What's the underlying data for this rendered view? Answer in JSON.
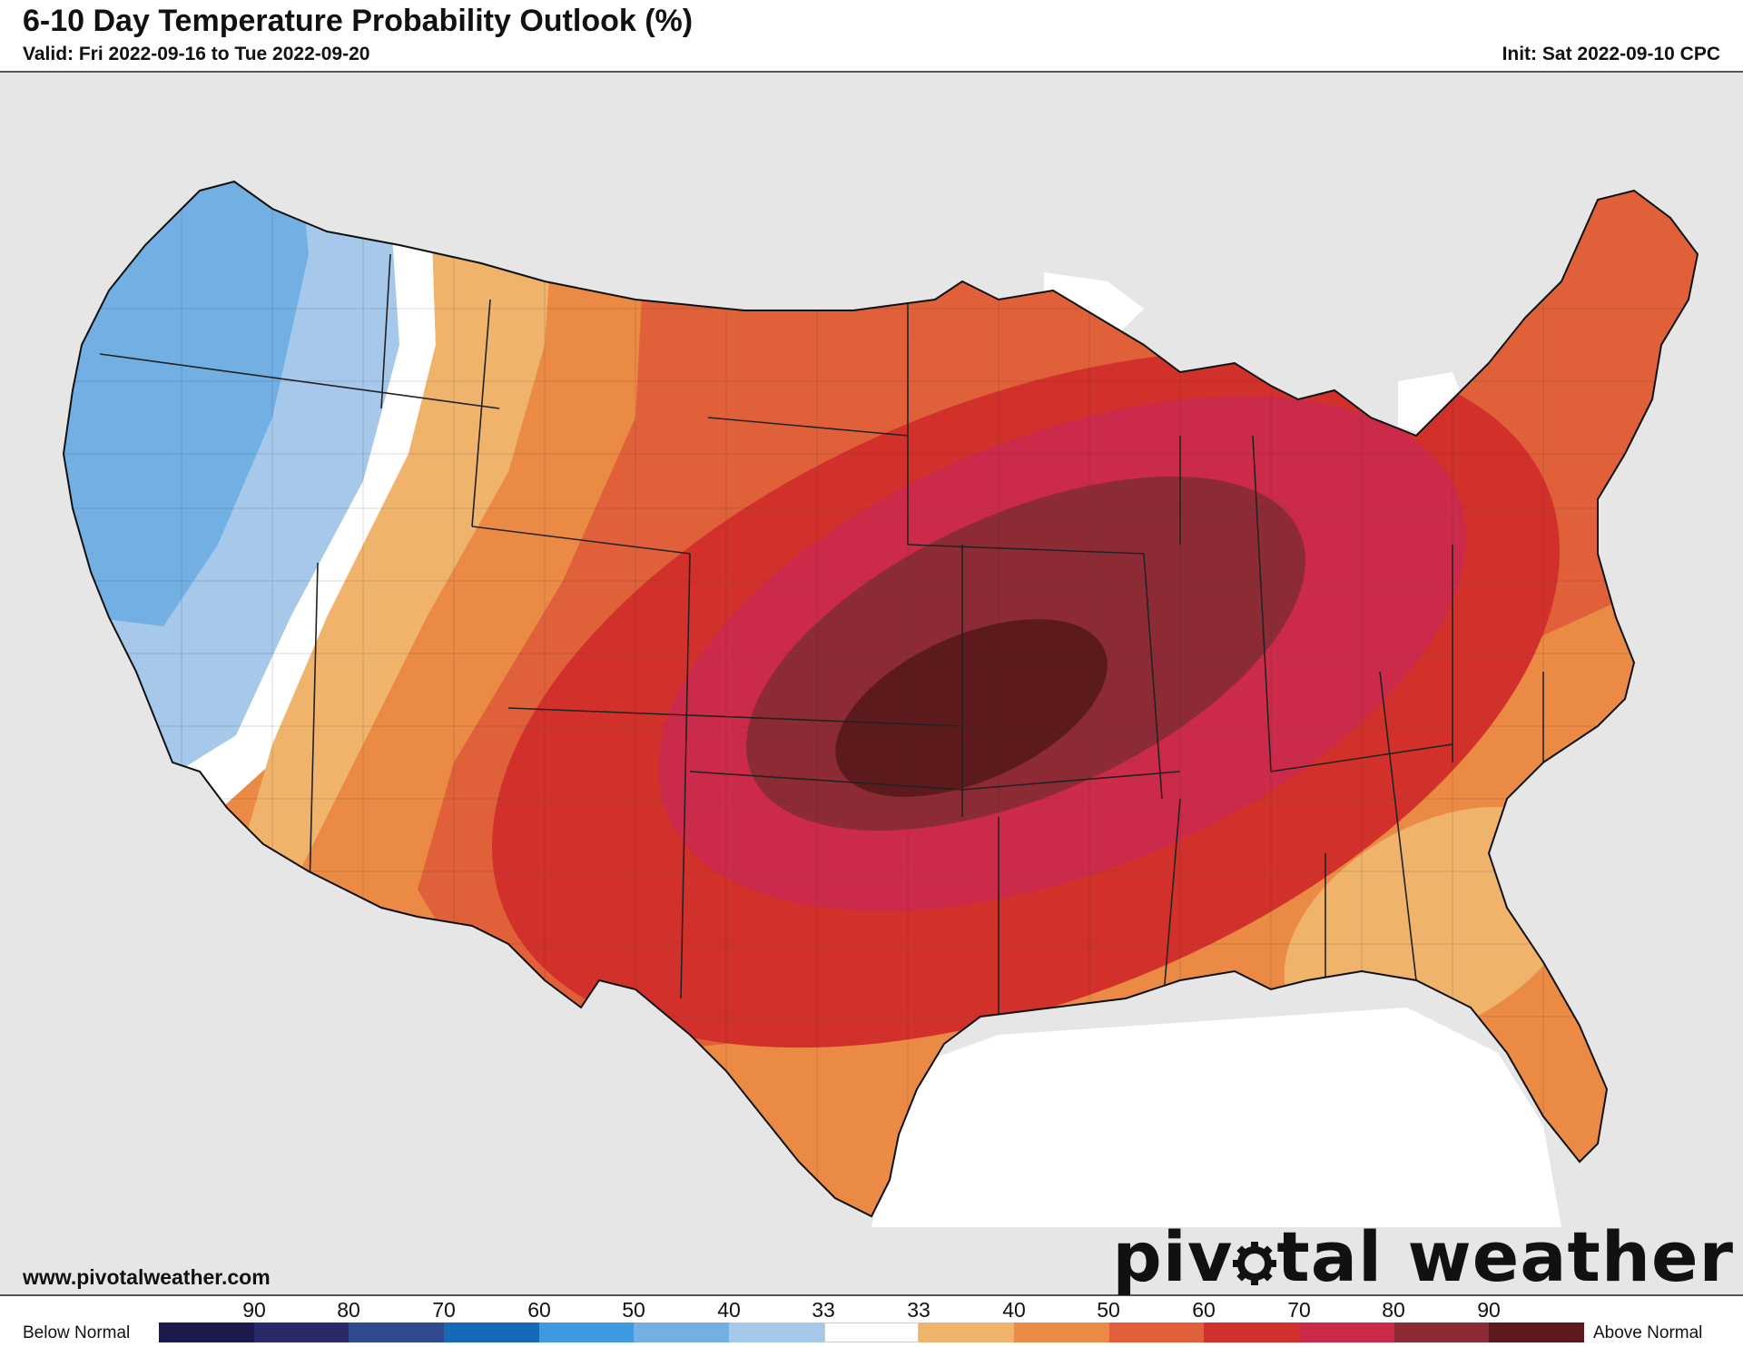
{
  "header": {
    "title": "6-10 Day Temperature Probability Outlook (%)",
    "valid": "Valid: Fri 2022-09-16 to Tue 2022-09-20",
    "init": "Init: Sat 2022-09-10 CPC"
  },
  "footer": {
    "website": "www.pivotalweather.com",
    "logo_left": "piv",
    "logo_right": "tal weather"
  },
  "legend": {
    "below_label": "Below Normal",
    "above_label": "Above Normal",
    "ticks": [
      "90",
      "80",
      "70",
      "60",
      "50",
      "40",
      "33",
      "33",
      "40",
      "50",
      "60",
      "70",
      "80",
      "90"
    ],
    "colors": [
      "#1b1a4a",
      "#282a6a",
      "#2f4a8e",
      "#1668b8",
      "#3d9ae0",
      "#72b0e4",
      "#a6c8ea",
      "#ffffff",
      "#efb36b",
      "#eb8a45",
      "#e0603a",
      "#d2302b",
      "#cc2a4a",
      "#8c2a36",
      "#5c1a1c"
    ]
  },
  "map_colors": {
    "land_outside": "#e6e6e6",
    "water": "#ffffff",
    "below_33": "#a6c8ea",
    "below_40": "#72b0e4",
    "near_normal": "#ffffff",
    "above_33": "#efb36b",
    "above_40": "#eb8a45",
    "above_50": "#e0603a",
    "above_60": "#d2302b",
    "above_70": "#cc2a4a",
    "above_80": "#8c2a36",
    "above_90": "#5c1a1c"
  }
}
